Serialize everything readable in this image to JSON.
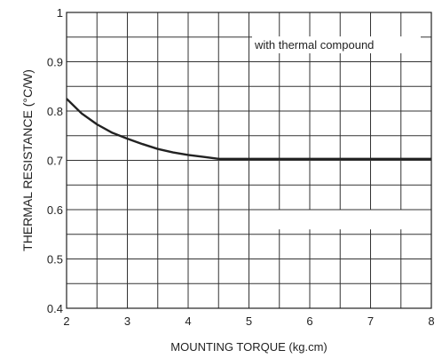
{
  "chart_data": {
    "type": "line",
    "title": "",
    "xlabel": "MOUNTING TORQUE (kg.cm)",
    "ylabel": "THERMAL RESISTANCE (°C/W)",
    "xlim": [
      2,
      8
    ],
    "ylim": [
      0.4,
      1.0
    ],
    "x_ticks": [
      "2",
      "3",
      "4",
      "5",
      "6",
      "7",
      "8"
    ],
    "y_ticks": [
      "0.4",
      "0.5",
      "0.6",
      "0.7",
      "0.8",
      "0.9",
      "1"
    ],
    "grid": true,
    "grid_x_minor_step": 0.5,
    "grid_y_minor_step": 0.05,
    "annotation": "with thermal compound",
    "series": [
      {
        "x": [
          2.0,
          2.25,
          2.5,
          2.75,
          3.0,
          3.25,
          3.5,
          3.75,
          4.0,
          4.25,
          4.5,
          5.0,
          5.5,
          6.0,
          6.5,
          7.0,
          7.5,
          8.0
        ],
        "y": [
          0.825,
          0.795,
          0.773,
          0.756,
          0.744,
          0.733,
          0.723,
          0.716,
          0.711,
          0.707,
          0.703,
          0.703,
          0.703,
          0.703,
          0.703,
          0.703,
          0.703,
          0.703
        ],
        "color": "#222222"
      }
    ]
  }
}
